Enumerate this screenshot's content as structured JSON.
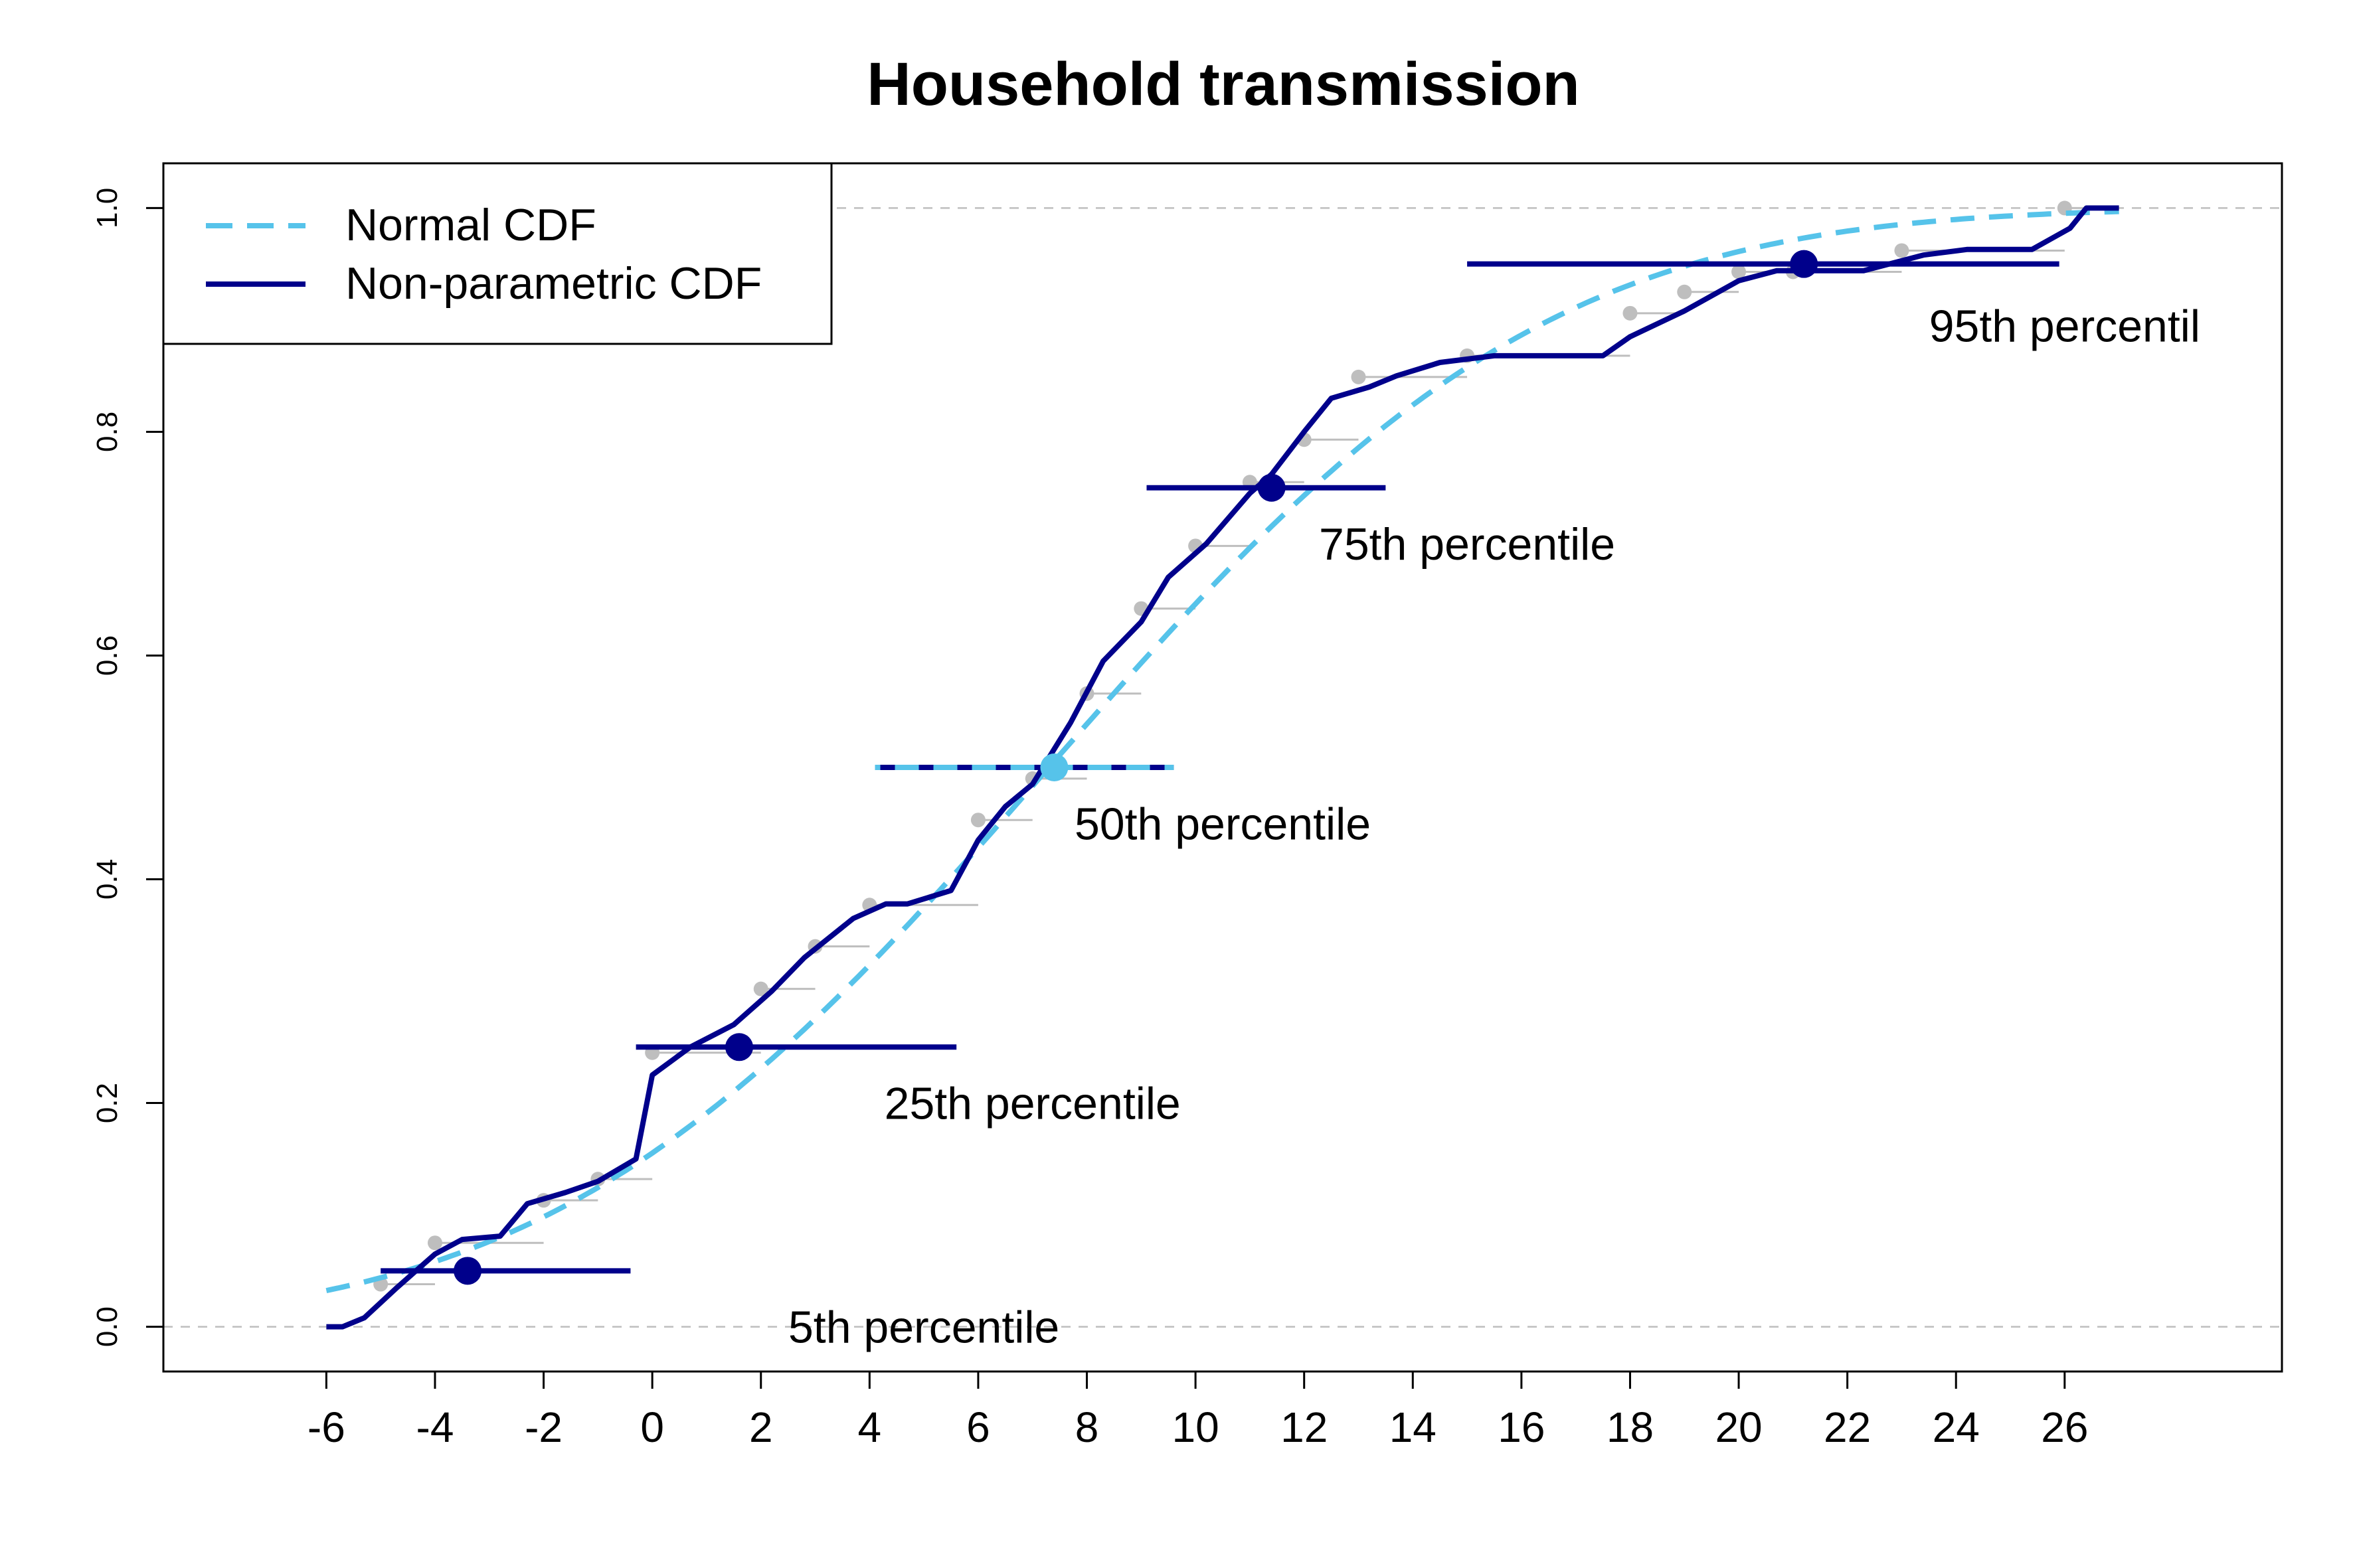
{
  "chart_data": {
    "type": "line",
    "title": "Household transmission",
    "xlabel": "",
    "ylabel": "",
    "xlim": [
      -9,
      30
    ],
    "ylim": [
      -0.04,
      1.04
    ],
    "x_ticks": [
      -6,
      -4,
      -2,
      0,
      2,
      4,
      6,
      8,
      10,
      12,
      14,
      16,
      18,
      20,
      22,
      24,
      26
    ],
    "y_ticks": [
      0.0,
      0.2,
      0.4,
      0.6,
      0.8,
      1.0
    ],
    "y_tick_labels": [
      "0.0",
      "0.2",
      "0.4",
      "0.6",
      "0.8",
      "1.0"
    ],
    "reference_lines": [
      0,
      1
    ],
    "legend": {
      "position": "top-left",
      "entries": [
        {
          "label": "Normal CDF",
          "color": "#56C3EA",
          "style": "dashed"
        },
        {
          "label": "Non-parametric CDF",
          "color": "#00008B",
          "style": "solid"
        }
      ]
    },
    "colors": {
      "normal": "#56C3EA",
      "nonparametric": "#00008B",
      "empirical": "#BEBEBE",
      "reference": "#BEBEBE"
    },
    "normal_cdf": {
      "mean": 7.3,
      "sd": 7.2,
      "x_range": [
        -6,
        27
      ]
    },
    "series": [
      {
        "name": "Non-parametric CDF",
        "x": [
          -6,
          -5.7,
          -5.3,
          -4.7,
          -4,
          -3.5,
          -2.8,
          -2.3,
          -1.6,
          -1,
          -0.3,
          0,
          0.7,
          1.5,
          2.2,
          2.8,
          3.7,
          4.3,
          4.7,
          5.5,
          6,
          6.5,
          7,
          7.7,
          8.3,
          9,
          9.5,
          10.2,
          11,
          11.4,
          12,
          12.5,
          13.2,
          13.7,
          14.5,
          15.5,
          17.5,
          18.0,
          19,
          20,
          20.7,
          22.3,
          23.4,
          24.2,
          25.4,
          26.1,
          26.4,
          27
        ],
        "y": [
          0,
          0,
          0.008,
          0.035,
          0.065,
          0.078,
          0.081,
          0.11,
          0.12,
          0.13,
          0.15,
          0.225,
          0.25,
          0.27,
          0.3,
          0.33,
          0.365,
          0.378,
          0.378,
          0.39,
          0.435,
          0.465,
          0.485,
          0.54,
          0.595,
          0.63,
          0.67,
          0.7,
          0.745,
          0.762,
          0.8,
          0.83,
          0.84,
          0.85,
          0.862,
          0.868,
          0.868,
          0.885,
          0.908,
          0.935,
          0.944,
          0.944,
          0.958,
          0.963,
          0.963,
          0.982,
          1.0,
          1.0
        ]
      }
    ],
    "empirical_points": {
      "x": [
        -5,
        -4,
        -2,
        -1,
        0,
        2,
        3,
        4,
        6,
        7,
        8,
        9,
        10,
        11,
        12,
        13,
        15,
        18,
        19,
        20,
        21,
        23,
        26
      ],
      "y": [
        0.038,
        0.075,
        0.113,
        0.132,
        0.245,
        0.302,
        0.34,
        0.377,
        0.453,
        0.49,
        0.566,
        0.642,
        0.698,
        0.755,
        0.793,
        0.849,
        0.868,
        0.906,
        0.925,
        0.943,
        0.943,
        0.962,
        1.0
      ]
    },
    "percentiles": [
      {
        "label": "5th percentile",
        "x": -3.4,
        "y": 0.05,
        "ci": [
          -5,
          -0.4
        ],
        "marker": "nonparametric",
        "label_x": 5,
        "label_y": 0.0
      },
      {
        "label": "25th percentile",
        "x": 1.6,
        "y": 0.25,
        "ci": [
          -0.3,
          5.6
        ],
        "marker": "nonparametric",
        "label_x": 7,
        "label_y": 0.2
      },
      {
        "label": "50th percentile",
        "x": 7.4,
        "y": 0.5,
        "ci": [
          4.1,
          9.6
        ],
        "marker": "normal",
        "label_x": 10.5,
        "label_y": 0.45
      },
      {
        "label": "75th percentile",
        "x": 11.4,
        "y": 0.75,
        "ci": [
          9.1,
          13.5
        ],
        "marker": "nonparametric",
        "label_x": 15,
        "label_y": 0.7
      },
      {
        "label": "95th percentil",
        "x": 21.2,
        "y": 0.95,
        "ci": [
          15,
          25.9
        ],
        "marker": "nonparametric",
        "label_x": 26,
        "label_y": 0.895
      }
    ]
  }
}
